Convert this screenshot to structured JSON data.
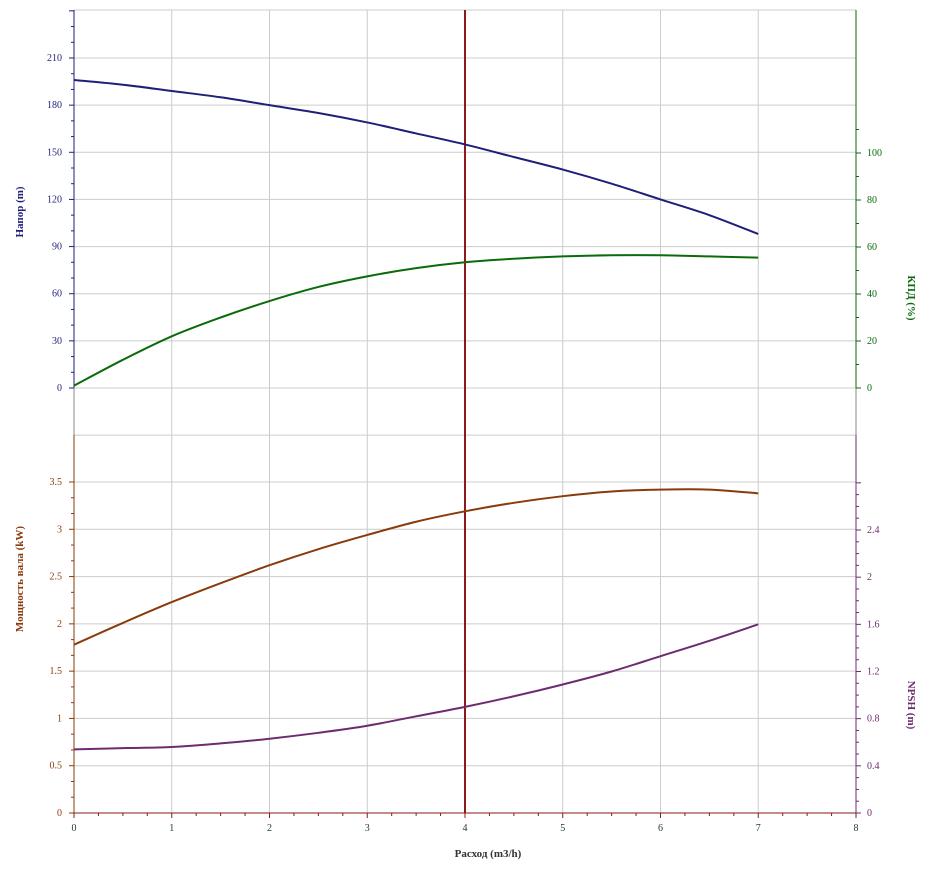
{
  "chart_data": {
    "type": "line",
    "x": {
      "label": "Расход (m3/h)",
      "min": 0,
      "max": 8,
      "ticks": [
        "0",
        "1",
        "2",
        "3",
        "4",
        "5",
        "6",
        "7",
        "8"
      ]
    },
    "operating_point_x": 4,
    "grid": true,
    "colors": {
      "head": "#1f1f7a",
      "efficiency": "#0b6b0b",
      "power": "#8b3a0b",
      "npsh": "#6e2c70",
      "operating_line": "#8b1a1a",
      "grid": "#cccccc"
    },
    "top_panel": {
      "left_axis": {
        "label": "Напор (m)",
        "min": 0,
        "max": 210,
        "ticks": [
          "0",
          "30",
          "60",
          "90",
          "120",
          "150",
          "180",
          "210"
        ]
      },
      "right_axis": {
        "label": "КПД (%)",
        "min": 0,
        "max": 100,
        "ticks": [
          "0",
          "20",
          "40",
          "60",
          "80",
          "100"
        ]
      },
      "series": [
        {
          "key": "head",
          "axis": "left",
          "x": [
            0,
            0.5,
            1,
            1.5,
            2,
            2.5,
            3,
            3.5,
            4,
            4.5,
            5,
            5.5,
            6,
            6.5,
            7
          ],
          "y": [
            196,
            193,
            189,
            185,
            180,
            175,
            169,
            162,
            155,
            147,
            139,
            130,
            120,
            110,
            98
          ]
        },
        {
          "key": "efficiency",
          "axis": "right",
          "x": [
            0,
            0.5,
            1,
            1.5,
            2,
            2.5,
            3,
            3.5,
            4,
            4.5,
            5,
            5.5,
            6,
            6.5,
            7
          ],
          "y": [
            1,
            12,
            22,
            30,
            37,
            43,
            47.5,
            51,
            53.5,
            55,
            56,
            56.5,
            56.5,
            56,
            55.5
          ]
        }
      ]
    },
    "bottom_panel": {
      "left_axis": {
        "label": "Мощность вала (kW)",
        "min": 0,
        "max": 3.5,
        "ticks": [
          "0",
          "0.5",
          "1",
          "1.5",
          "2",
          "2.5",
          "3",
          "3.5"
        ]
      },
      "right_axis": {
        "label": "NPSH (m)",
        "min": 0,
        "max": 2.8,
        "ticks": [
          "0",
          "0.4",
          "0.8",
          "1.2",
          "1.6",
          "2",
          "2.4"
        ]
      },
      "series": [
        {
          "key": "power",
          "axis": "left",
          "x": [
            0,
            0.5,
            1,
            1.5,
            2,
            2.5,
            3,
            3.5,
            4,
            4.5,
            5,
            5.5,
            6,
            6.5,
            7
          ],
          "y": [
            1.78,
            2.01,
            2.23,
            2.43,
            2.62,
            2.79,
            2.94,
            3.08,
            3.19,
            3.28,
            3.35,
            3.4,
            3.42,
            3.42,
            3.38
          ]
        },
        {
          "key": "npsh",
          "axis": "right",
          "x": [
            0,
            0.5,
            1,
            1.5,
            2,
            2.5,
            3,
            3.5,
            4,
            4.5,
            5,
            5.5,
            6,
            6.5,
            7
          ],
          "y": [
            0.54,
            0.55,
            0.56,
            0.59,
            0.63,
            0.68,
            0.74,
            0.82,
            0.9,
            0.99,
            1.09,
            1.2,
            1.33,
            1.46,
            1.6
          ]
        }
      ]
    }
  }
}
